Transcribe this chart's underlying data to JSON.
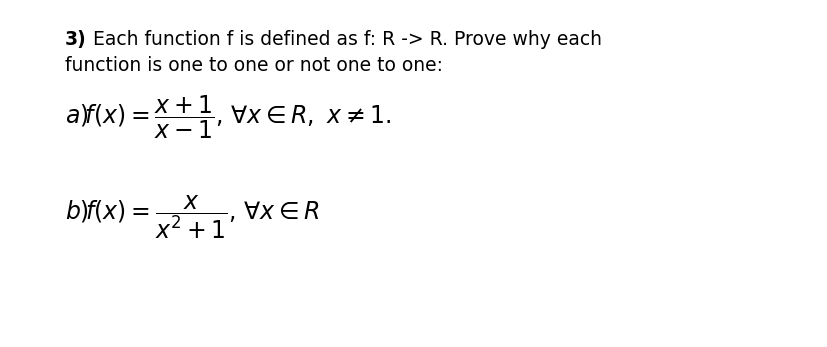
{
  "background_color": "#ffffff",
  "figsize": [
    8.28,
    3.47
  ],
  "dpi": 100,
  "header_bold": "3)",
  "header_text_1": " Each function f is defined as f: R -> R. Prove why each",
  "header_text_2": "function is one to one or not one to one:",
  "line_a": "$\\it{a)}\\!f(x) = \\dfrac{x+1}{x-1}$, $\\forall x \\in R,\\ x \\neq 1.$",
  "line_b": "$\\it{b)}\\!f(x) = \\dfrac{x}{x^2+1}$, $\\forall x \\in R$",
  "text_color": "#000000",
  "header_fontsize": 13.5,
  "math_fontsize": 17
}
